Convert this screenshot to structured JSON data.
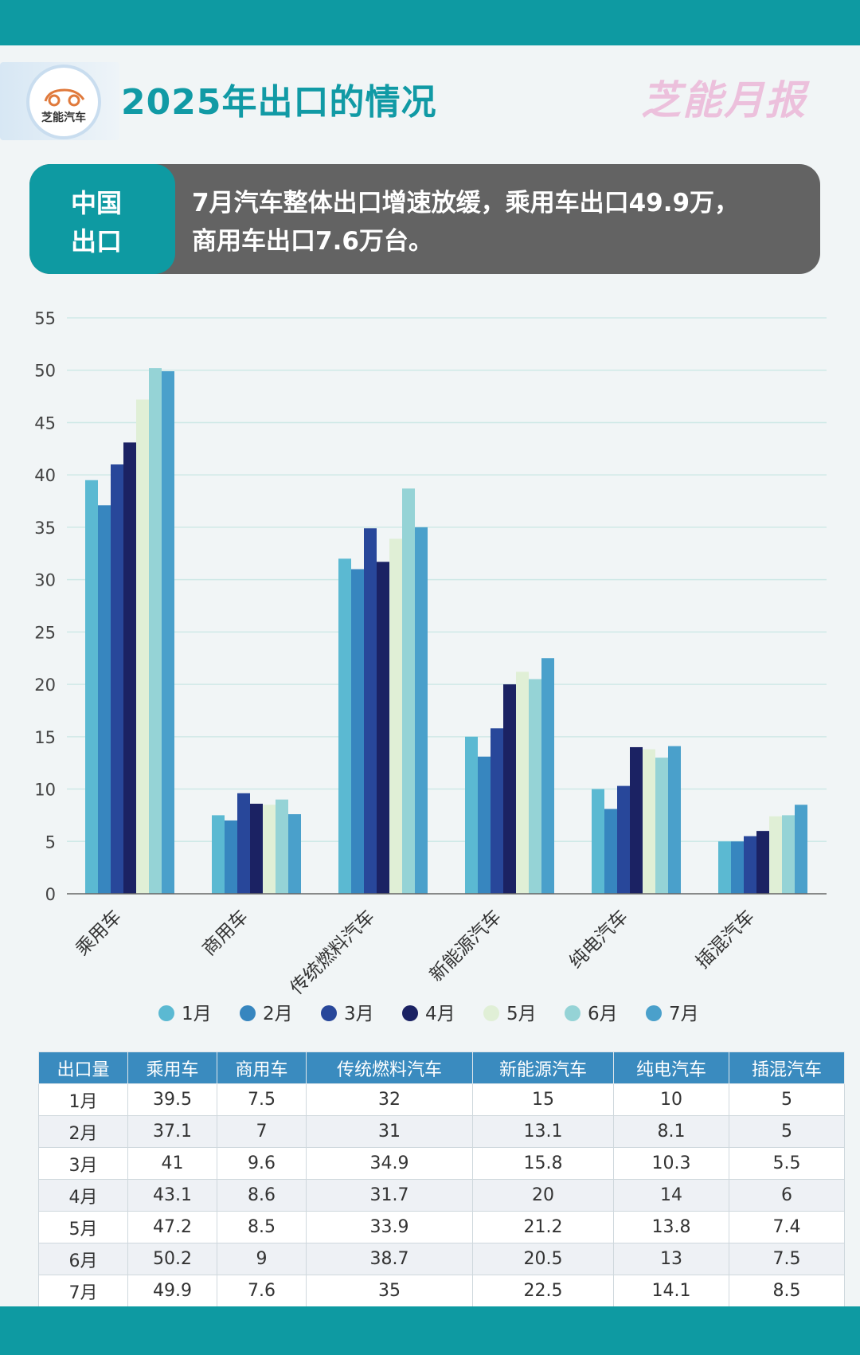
{
  "header": {
    "title": "2025年出口的情况",
    "logo_text": "芝能汽车",
    "brand": "芝能月报"
  },
  "banner": {
    "tag_line1": "中国",
    "tag_line2": "出口",
    "text_line1": "7月汽车整体出口增速放缓，乘用车出口49.9万，",
    "text_line2": "商用车出口7.6万台。"
  },
  "colors": {
    "teal": "#0e9aa2",
    "series": [
      "#5bb9d2",
      "#3786bf",
      "#28479a",
      "#1b2263",
      "#e0efd6",
      "#95d3d6",
      "#4aa0cb"
    ]
  },
  "chart_data": {
    "type": "bar",
    "categories": [
      "乘用车",
      "商用车",
      "传统燃料汽车",
      "新能源汽车",
      "纯电汽车",
      "插混汽车"
    ],
    "series": [
      {
        "name": "1月",
        "values": [
          39.5,
          7.5,
          32,
          15,
          10,
          5
        ]
      },
      {
        "name": "2月",
        "values": [
          37.1,
          7,
          31,
          13.1,
          8.1,
          5
        ]
      },
      {
        "name": "3月",
        "values": [
          41,
          9.6,
          34.9,
          15.8,
          10.3,
          5.5
        ]
      },
      {
        "name": "4月",
        "values": [
          43.1,
          8.6,
          31.7,
          20,
          14,
          6
        ]
      },
      {
        "name": "5月",
        "values": [
          47.2,
          8.5,
          33.9,
          21.2,
          13.8,
          7.4
        ]
      },
      {
        "name": "6月",
        "values": [
          50.2,
          9,
          38.7,
          20.5,
          13,
          7.5
        ]
      },
      {
        "name": "7月",
        "values": [
          49.9,
          7.6,
          35,
          22.5,
          14.1,
          8.5
        ]
      }
    ],
    "ylim": [
      0,
      55
    ],
    "yticks": [
      0,
      5,
      10,
      15,
      20,
      25,
      30,
      35,
      40,
      45,
      50,
      55
    ],
    "grid": true,
    "legend": "bottom"
  },
  "table": {
    "headers": [
      "出口量",
      "乘用车",
      "商用车",
      "传统燃料汽车",
      "新能源汽车",
      "纯电汽车",
      "插混汽车"
    ],
    "rows": [
      [
        "1月",
        "39.5",
        "7.5",
        "32",
        "15",
        "10",
        "5"
      ],
      [
        "2月",
        "37.1",
        "7",
        "31",
        "13.1",
        "8.1",
        "5"
      ],
      [
        "3月",
        "41",
        "9.6",
        "34.9",
        "15.8",
        "10.3",
        "5.5"
      ],
      [
        "4月",
        "43.1",
        "8.6",
        "31.7",
        "20",
        "14",
        "6"
      ],
      [
        "5月",
        "47.2",
        "8.5",
        "33.9",
        "21.2",
        "13.8",
        "7.4"
      ],
      [
        "6月",
        "50.2",
        "9",
        "38.7",
        "20.5",
        "13",
        "7.5"
      ],
      [
        "7月",
        "49.9",
        "7.6",
        "35",
        "22.5",
        "14.1",
        "8.5"
      ]
    ]
  }
}
